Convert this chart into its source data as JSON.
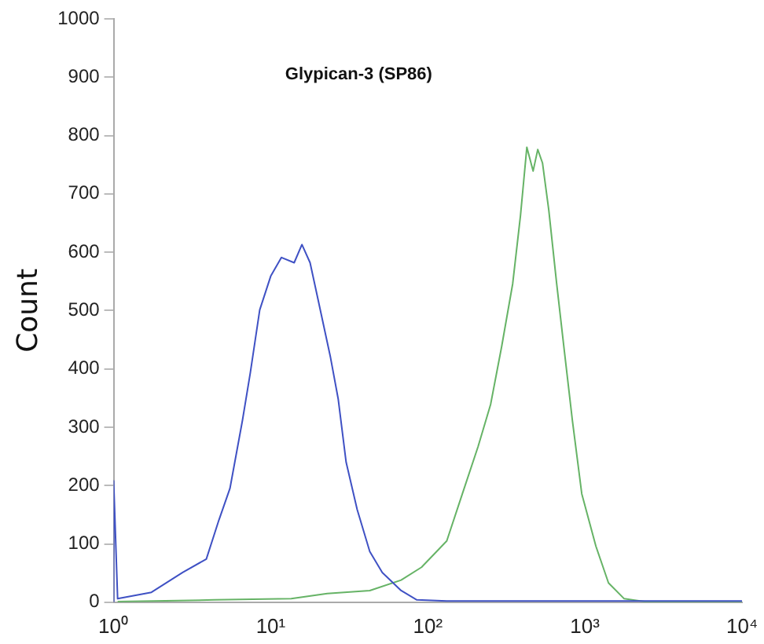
{
  "chart_data": {
    "type": "line",
    "title": "Glypican-3 (SP86)",
    "ylabel": "Count",
    "log": "x",
    "grid": false,
    "legend": false,
    "marker": "none",
    "xlim": [
      1,
      10000
    ],
    "xticks": [
      {
        "value": 1,
        "label": "10⁰"
      },
      {
        "value": 10,
        "label": "10¹"
      },
      {
        "value": 100,
        "label": "10²"
      },
      {
        "value": 1000,
        "label": "10³"
      },
      {
        "value": 10000,
        "label": "10⁴"
      }
    ],
    "ylim": [
      0,
      1000
    ],
    "yticks": [
      0,
      100,
      200,
      300,
      400,
      500,
      600,
      700,
      800,
      900,
      1000
    ],
    "series": [
      {
        "color": "#3f51c4",
        "x": [
          1,
          1,
          1.06,
          1.74,
          2.75,
          3.89,
          4.68,
          5.5,
          6.61,
          7.41,
          8.51,
          10,
          11.7,
          14.1,
          15.8,
          17.8,
          20,
          24,
          26.9,
          30.2,
          35.5,
          42.7,
          51.3,
          67.6,
          85.1,
          132,
          10000
        ],
        "values": [
          0,
          208,
          6,
          17,
          51,
          74,
          141,
          195,
          312,
          393,
          501,
          559,
          591,
          582,
          613,
          582,
          519,
          420,
          348,
          240,
          159,
          87,
          51,
          20,
          4,
          2,
          2
        ]
      },
      {
        "color": "#66b366",
        "x": [
          1.06,
          4.37,
          13.5,
          22.9,
          42.7,
          67.6,
          91.2,
          132,
          166,
          209,
          251,
          295,
          347,
          389,
          427,
          468,
          501,
          537,
          589,
          661,
          741,
          832,
          955,
          1175,
          1413,
          1778,
          2399,
          10000
        ],
        "values": [
          1,
          4,
          6,
          15,
          20,
          38,
          60,
          105,
          186,
          267,
          339,
          438,
          546,
          663,
          780,
          739,
          776,
          753,
          672,
          546,
          429,
          312,
          186,
          96,
          33,
          6,
          1,
          1
        ]
      }
    ]
  }
}
